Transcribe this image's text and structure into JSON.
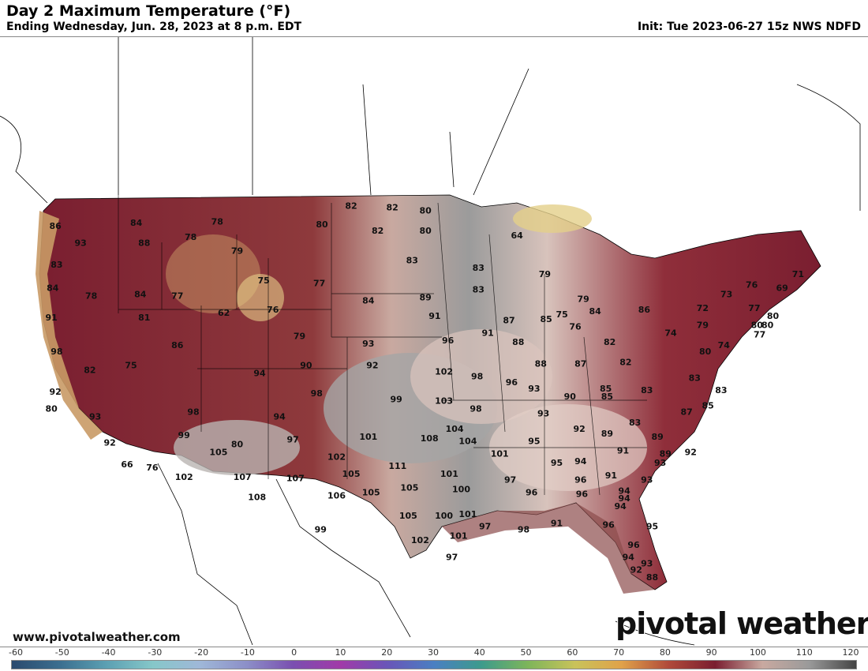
{
  "header": {
    "title": "Day 2 Maximum Temperature (°F)",
    "subtitle": "Ending Wednesday, Jun. 28, 2023 at 8 p.m. EDT",
    "init": "Init: Tue 2023-06-27 15z NWS NDFD"
  },
  "footer": {
    "website": "www.pivotalweather.com",
    "brand": "pivotal weather"
  },
  "colorbar": {
    "ticks": [
      "-60",
      "-50",
      "-40",
      "-30",
      "-20",
      "-10",
      "0",
      "10",
      "20",
      "30",
      "40",
      "50",
      "60",
      "70",
      "80",
      "90",
      "100",
      "110",
      "120"
    ],
    "stops": [
      "#2a4a6e",
      "#3b6e8f",
      "#5b9fb2",
      "#86c7c9",
      "#9fb8d8",
      "#8c8fc8",
      "#7a4fb0",
      "#a13aa8",
      "#6a55b8",
      "#4a7fc2",
      "#3d9b8c",
      "#7db55a",
      "#c9c35a",
      "#e0a24a",
      "#b04a3a",
      "#7a1e30",
      "#c9a9a0",
      "#9a9a9a",
      "#444444"
    ],
    "accent": "#7a1e30"
  },
  "map_labels": [
    {
      "v": "86",
      "lon": -124.0,
      "lat": 47.3
    },
    {
      "v": "84",
      "lon": -117.9,
      "lat": 47.5
    },
    {
      "v": "78",
      "lon": -111.8,
      "lat": 47.6
    },
    {
      "v": "82",
      "lon": -101.7,
      "lat": 48.6
    },
    {
      "v": "82",
      "lon": -98.6,
      "lat": 48.5
    },
    {
      "v": "80",
      "lon": -96.1,
      "lat": 48.3
    },
    {
      "v": "93",
      "lon": -122.1,
      "lat": 46.2
    },
    {
      "v": "88",
      "lon": -117.3,
      "lat": 46.2
    },
    {
      "v": "78",
      "lon": -113.8,
      "lat": 46.6
    },
    {
      "v": "80",
      "lon": -103.9,
      "lat": 47.4
    },
    {
      "v": "82",
      "lon": -99.7,
      "lat": 47.0
    },
    {
      "v": "80",
      "lon": -96.1,
      "lat": 47.0
    },
    {
      "v": "64",
      "lon": -89.2,
      "lat": 46.7
    },
    {
      "v": "83",
      "lon": -123.9,
      "lat": 44.8
    },
    {
      "v": "79",
      "lon": -110.3,
      "lat": 45.7
    },
    {
      "v": "83",
      "lon": -97.1,
      "lat": 45.1
    },
    {
      "v": "83",
      "lon": -92.1,
      "lat": 44.6
    },
    {
      "v": "79",
      "lon": -87.1,
      "lat": 44.2
    },
    {
      "v": "84",
      "lon": -124.2,
      "lat": 43.3
    },
    {
      "v": "78",
      "lon": -121.3,
      "lat": 42.8
    },
    {
      "v": "84",
      "lon": -117.6,
      "lat": 42.9
    },
    {
      "v": "77",
      "lon": -114.8,
      "lat": 42.8
    },
    {
      "v": "75",
      "lon": -108.3,
      "lat": 43.8
    },
    {
      "v": "77",
      "lon": -104.1,
      "lat": 43.6
    },
    {
      "v": "84",
      "lon": -100.4,
      "lat": 42.5
    },
    {
      "v": "89",
      "lon": -96.1,
      "lat": 42.7
    },
    {
      "v": "83",
      "lon": -92.1,
      "lat": 43.2
    },
    {
      "v": "79",
      "lon": -84.2,
      "lat": 42.6
    },
    {
      "v": "91",
      "lon": -124.3,
      "lat": 41.4
    },
    {
      "v": "81",
      "lon": -117.3,
      "lat": 41.4
    },
    {
      "v": "62",
      "lon": -111.3,
      "lat": 41.7
    },
    {
      "v": "76",
      "lon": -107.6,
      "lat": 41.9
    },
    {
      "v": "91",
      "lon": -95.4,
      "lat": 41.5
    },
    {
      "v": "87",
      "lon": -89.8,
      "lat": 41.2
    },
    {
      "v": "85",
      "lon": -87.0,
      "lat": 41.3
    },
    {
      "v": "75",
      "lon": -85.8,
      "lat": 41.6
    },
    {
      "v": "84",
      "lon": -83.3,
      "lat": 41.8
    },
    {
      "v": "86",
      "lon": -79.6,
      "lat": 41.9
    },
    {
      "v": "98",
      "lon": -123.9,
      "lat": 39.2
    },
    {
      "v": "86",
      "lon": -114.8,
      "lat": 39.6
    },
    {
      "v": "79",
      "lon": -105.6,
      "lat": 40.2
    },
    {
      "v": "93",
      "lon": -100.4,
      "lat": 39.7
    },
    {
      "v": "96",
      "lon": -94.4,
      "lat": 39.9
    },
    {
      "v": "91",
      "lon": -91.4,
      "lat": 40.4
    },
    {
      "v": "88",
      "lon": -89.1,
      "lat": 39.8
    },
    {
      "v": "76",
      "lon": -84.8,
      "lat": 40.8
    },
    {
      "v": "82",
      "lon": -82.2,
      "lat": 39.8
    },
    {
      "v": "74",
      "lon": -77.6,
      "lat": 40.4
    },
    {
      "v": "74",
      "lon": -73.6,
      "lat": 39.6
    },
    {
      "v": "77",
      "lon": -70.9,
      "lat": 40.3
    },
    {
      "v": "82",
      "lon": -121.4,
      "lat": 38.0
    },
    {
      "v": "75",
      "lon": -118.3,
      "lat": 38.3
    },
    {
      "v": "94",
      "lon": -108.6,
      "lat": 37.8
    },
    {
      "v": "90",
      "lon": -105.1,
      "lat": 38.3
    },
    {
      "v": "92",
      "lon": -100.1,
      "lat": 38.3
    },
    {
      "v": "102",
      "lon": -94.7,
      "lat": 37.9
    },
    {
      "v": "98",
      "lon": -92.2,
      "lat": 37.6
    },
    {
      "v": "96",
      "lon": -89.6,
      "lat": 37.2
    },
    {
      "v": "88",
      "lon": -87.4,
      "lat": 38.4
    },
    {
      "v": "87",
      "lon": -84.4,
      "lat": 38.4
    },
    {
      "v": "82",
      "lon": -81.0,
      "lat": 38.5
    },
    {
      "v": "80",
      "lon": -75.0,
      "lat": 39.2
    },
    {
      "v": "92",
      "lon": -124.0,
      "lat": 36.6
    },
    {
      "v": "98",
      "lon": -104.3,
      "lat": 36.5
    },
    {
      "v": "99",
      "lon": -98.3,
      "lat": 36.1
    },
    {
      "v": "103",
      "lon": -94.7,
      "lat": 36.0
    },
    {
      "v": "93",
      "lon": -87.9,
      "lat": 36.8
    },
    {
      "v": "90",
      "lon": -85.2,
      "lat": 36.3
    },
    {
      "v": "85",
      "lon": -82.5,
      "lat": 36.8
    },
    {
      "v": "85",
      "lon": -82.4,
      "lat": 36.3
    },
    {
      "v": "83",
      "lon": -79.4,
      "lat": 36.7
    },
    {
      "v": "83",
      "lon": -75.8,
      "lat": 37.5
    },
    {
      "v": "83",
      "lon": -73.8,
      "lat": 36.7
    },
    {
      "v": "80",
      "lon": -124.3,
      "lat": 35.5
    },
    {
      "v": "98",
      "lon": -113.6,
      "lat": 35.3
    },
    {
      "v": "98",
      "lon": -92.3,
      "lat": 35.5
    },
    {
      "v": "93",
      "lon": -87.2,
      "lat": 35.2
    },
    {
      "v": "87",
      "lon": -76.4,
      "lat": 35.3
    },
    {
      "v": "85",
      "lon": -74.8,
      "lat": 35.7
    },
    {
      "v": "93",
      "lon": -121.0,
      "lat": 35.0
    },
    {
      "v": "94",
      "lon": -107.1,
      "lat": 35.0
    },
    {
      "v": "104",
      "lon": -93.9,
      "lat": 34.2
    },
    {
      "v": "92",
      "lon": -84.5,
      "lat": 34.2
    },
    {
      "v": "83",
      "lon": -80.3,
      "lat": 34.6
    },
    {
      "v": "89",
      "lon": -82.4,
      "lat": 33.9
    },
    {
      "v": "89",
      "lon": -78.6,
      "lat": 33.7
    },
    {
      "v": "92",
      "lon": -119.9,
      "lat": 33.3
    },
    {
      "v": "99",
      "lon": -114.3,
      "lat": 33.8
    },
    {
      "v": "97",
      "lon": -106.1,
      "lat": 33.5
    },
    {
      "v": "101",
      "lon": -100.4,
      "lat": 33.7
    },
    {
      "v": "108",
      "lon": -95.8,
      "lat": 33.6
    },
    {
      "v": "104",
      "lon": -92.9,
      "lat": 33.4
    },
    {
      "v": "95",
      "lon": -87.9,
      "lat": 33.4
    },
    {
      "v": "91",
      "lon": -81.2,
      "lat": 32.8
    },
    {
      "v": "89",
      "lon": -78.0,
      "lat": 32.6
    },
    {
      "v": "66",
      "lon": -118.6,
      "lat": 31.9
    },
    {
      "v": "76",
      "lon": -116.7,
      "lat": 31.7
    },
    {
      "v": "102",
      "lon": -114.3,
      "lat": 31.1
    },
    {
      "v": "105",
      "lon": -111.7,
      "lat": 32.7
    },
    {
      "v": "80",
      "lon": -110.3,
      "lat": 33.2
    },
    {
      "v": "102",
      "lon": -102.8,
      "lat": 32.4
    },
    {
      "v": "101",
      "lon": -90.5,
      "lat": 32.6
    },
    {
      "v": "94",
      "lon": -84.4,
      "lat": 32.1
    },
    {
      "v": "95",
      "lon": -86.2,
      "lat": 32.0
    },
    {
      "v": "93",
      "lon": -78.4,
      "lat": 32.0
    },
    {
      "v": "92",
      "lon": -76.1,
      "lat": 32.7
    },
    {
      "v": "107",
      "lon": -109.9,
      "lat": 31.1
    },
    {
      "v": "105",
      "lon": -101.7,
      "lat": 31.3
    },
    {
      "v": "111",
      "lon": -98.2,
      "lat": 31.8
    },
    {
      "v": "101",
      "lon": -94.3,
      "lat": 31.3
    },
    {
      "v": "107",
      "lon": -105.9,
      "lat": 31.0
    },
    {
      "v": "97",
      "lon": -89.7,
      "lat": 30.9
    },
    {
      "v": "96",
      "lon": -84.4,
      "lat": 30.9
    },
    {
      "v": "91",
      "lon": -82.1,
      "lat": 31.2
    },
    {
      "v": "93",
      "lon": -79.4,
      "lat": 30.9
    },
    {
      "v": "108",
      "lon": -108.8,
      "lat": 29.8
    },
    {
      "v": "106",
      "lon": -102.8,
      "lat": 29.9
    },
    {
      "v": "105",
      "lon": -100.2,
      "lat": 30.1
    },
    {
      "v": "105",
      "lon": -97.3,
      "lat": 30.4
    },
    {
      "v": "100",
      "lon": -93.4,
      "lat": 30.3
    },
    {
      "v": "96",
      "lon": -88.1,
      "lat": 30.1
    },
    {
      "v": "96",
      "lon": -84.3,
      "lat": 30.0
    },
    {
      "v": "94",
      "lon": -81.1,
      "lat": 30.2
    },
    {
      "v": "94",
      "lon": -81.1,
      "lat": 29.7
    },
    {
      "v": "105",
      "lon": -97.4,
      "lat": 28.6
    },
    {
      "v": "100",
      "lon": -94.7,
      "lat": 28.6
    },
    {
      "v": "101",
      "lon": -92.9,
      "lat": 28.7
    },
    {
      "v": "94",
      "lon": -81.4,
      "lat": 29.2
    },
    {
      "v": "99",
      "lon": -104.0,
      "lat": 27.7
    },
    {
      "v": "97",
      "lon": -91.6,
      "lat": 27.9
    },
    {
      "v": "98",
      "lon": -88.7,
      "lat": 27.7
    },
    {
      "v": "91",
      "lon": -86.2,
      "lat": 28.1
    },
    {
      "v": "96",
      "lon": -82.3,
      "lat": 28.0
    },
    {
      "v": "95",
      "lon": -79.0,
      "lat": 27.9
    },
    {
      "v": "101",
      "lon": -93.6,
      "lat": 27.3
    },
    {
      "v": "102",
      "lon": -96.5,
      "lat": 27.0
    },
    {
      "v": "96",
      "lon": -80.4,
      "lat": 26.7
    },
    {
      "v": "97",
      "lon": -94.1,
      "lat": 25.9
    },
    {
      "v": "94",
      "lon": -80.8,
      "lat": 25.9
    },
    {
      "v": "93",
      "lon": -79.4,
      "lat": 25.5
    },
    {
      "v": "92",
      "lon": -80.2,
      "lat": 25.1
    },
    {
      "v": "88",
      "lon": -79.0,
      "lat": 24.6
    },
    {
      "v": "76",
      "lon": -71.5,
      "lat": 43.5
    },
    {
      "v": "71",
      "lon": -68.0,
      "lat": 44.2
    },
    {
      "v": "69",
      "lon": -69.2,
      "lat": 43.3
    },
    {
      "v": "73",
      "lon": -73.4,
      "lat": 42.9
    },
    {
      "v": "77",
      "lon": -71.3,
      "lat": 42.0
    },
    {
      "v": "80",
      "lon": -69.9,
      "lat": 41.5
    },
    {
      "v": "72",
      "lon": -75.2,
      "lat": 42.0
    },
    {
      "v": "80",
      "lon": -71.1,
      "lat": 40.9
    },
    {
      "v": "80",
      "lon": -70.3,
      "lat": 40.9
    },
    {
      "v": "79",
      "lon": -75.2,
      "lat": 40.9
    }
  ]
}
